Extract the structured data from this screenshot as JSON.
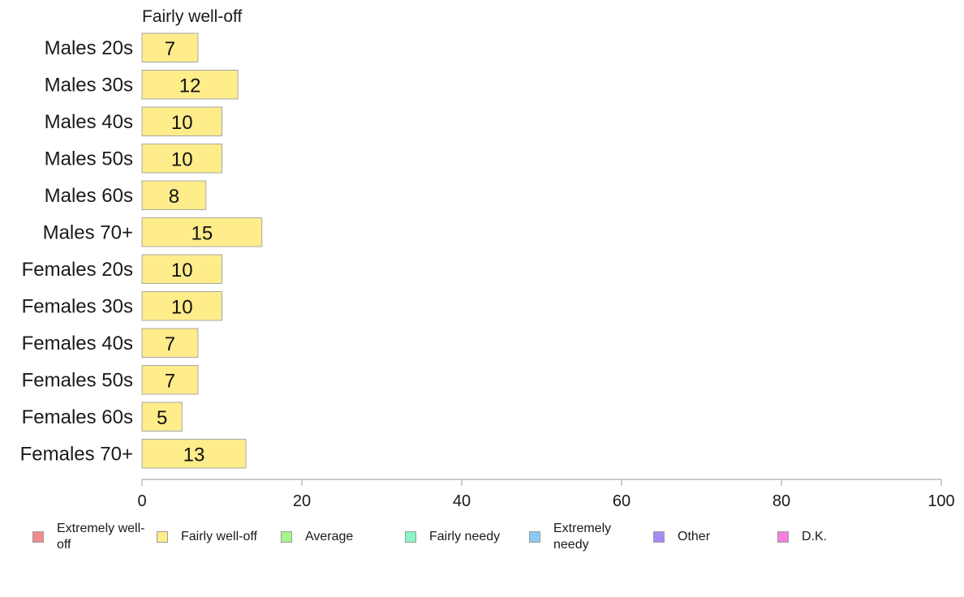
{
  "chart_data": {
    "type": "bar",
    "orientation": "horizontal",
    "stacked": true,
    "title": "Fairly well-off",
    "categories": [
      "Males 20s",
      "Males 30s",
      "Males 40s",
      "Males 50s",
      "Males 60s",
      "Males 70+",
      "Females 20s",
      "Females 30s",
      "Females 40s",
      "Females 50s",
      "Females 60s",
      "Females 70+"
    ],
    "series": [
      {
        "name": "Fairly well-off",
        "color": "#ffec8b",
        "values": [
          7,
          12,
          10,
          10,
          8,
          15,
          10,
          10,
          7,
          7,
          5,
          13
        ]
      }
    ],
    "xlim": [
      0,
      100
    ],
    "xticks": [
      0,
      20,
      40,
      60,
      80,
      100
    ],
    "grid": false,
    "legend_position": "bottom"
  },
  "legend": [
    {
      "label": "Extremely well-off",
      "color": "#f28b8b"
    },
    {
      "label": "Fairly well-off",
      "color": "#ffec8b"
    },
    {
      "label": "Average",
      "color": "#a6f58a"
    },
    {
      "label": "Fairly needy",
      "color": "#8cf5c8"
    },
    {
      "label": "Extremely needy",
      "color": "#8ccaf5"
    },
    {
      "label": "Other",
      "color": "#a78bf5"
    },
    {
      "label": "D.K.",
      "color": "#f57ee0"
    }
  ]
}
